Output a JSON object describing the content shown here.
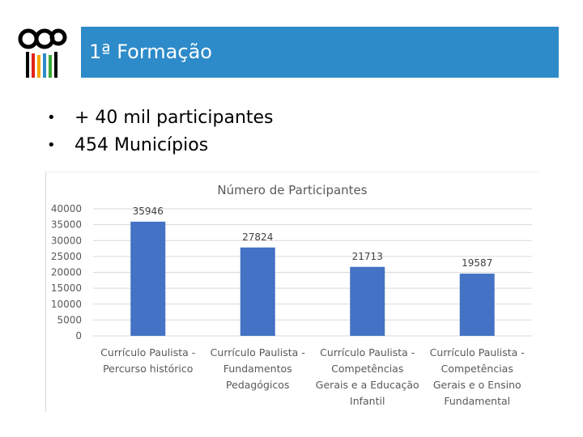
{
  "slide": {
    "title": "1ª Formação",
    "bullets": [
      "+ 40 mil participantes",
      "454 Municípios"
    ],
    "accent_color": "#2e8bc9"
  },
  "logo": {
    "icon": "ccc-logo-with-colored-pencils"
  },
  "chart_data": {
    "type": "bar",
    "title": "Número de Participantes",
    "categories": [
      [
        "Currículo Paulista -",
        "Percurso histórico"
      ],
      [
        "Currículo Paulista -",
        "Fundamentos",
        "Pedagógicos"
      ],
      [
        "Currículo Paulista -",
        "Competências",
        "Gerais e a Educação",
        "Infantil"
      ],
      [
        "Currículo Paulista -",
        "Competências",
        "Gerais e o Ensino",
        "Fundamental"
      ]
    ],
    "values": [
      35946,
      27824,
      21713,
      19587
    ],
    "data_labels": [
      "35946",
      "27824",
      "21713",
      "19587"
    ],
    "ylim": [
      0,
      40000
    ],
    "yticks": [
      "0",
      "5000",
      "10000",
      "15000",
      "20000",
      "25000",
      "30000",
      "35000",
      "40000"
    ],
    "grid": true,
    "bar_color": "#4472c4"
  }
}
